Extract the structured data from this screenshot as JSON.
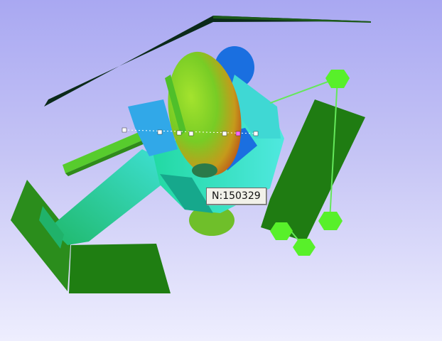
{
  "viewport": {
    "background_top": "#a9a8f2",
    "background_bottom": "#eeeefe"
  },
  "node_label": {
    "text": "N:150329"
  },
  "colors": {
    "steering_wheel_top": "#0b2a1a",
    "seat": "#1e7d12",
    "floor_plate": "#2a8f1c",
    "head": "#7fd12a",
    "head_hot": "#d27a14",
    "body_cyan": "#3fe0d0",
    "arm_blue": "#1a6fe0",
    "belt_anchor": "#58f02a",
    "belt_line": "#64e85a"
  },
  "icons": {
    "belt_anchor": "sphere-marker-icon",
    "node_marker": "node-marker-icon"
  }
}
